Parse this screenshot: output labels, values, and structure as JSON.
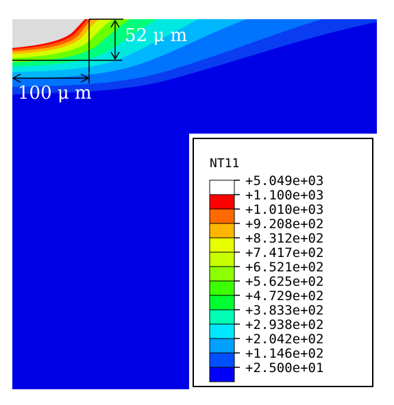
{
  "legend": {
    "title": "NT11",
    "values": [
      "+5.049e+03",
      "+1.100e+03",
      "+1.010e+03",
      "+9.208e+02",
      "+8.312e+02",
      "+7.417e+02",
      "+6.521e+02",
      "+5.625e+02",
      "+4.729e+02",
      "+3.833e+02",
      "+2.938e+02",
      "+2.042e+02",
      "+1.146e+02",
      "+2.500e+01"
    ],
    "colors": [
      "#ffffff",
      "#ff0000",
      "#ff6a00",
      "#ffb600",
      "#e8ff00",
      "#c8ff00",
      "#8cff00",
      "#3cff00",
      "#00ff32",
      "#00ffb4",
      "#00e8ff",
      "#00a0ff",
      "#0050ff",
      "#0000ff"
    ]
  },
  "annotations": {
    "depth": "52 μ m",
    "width": "100 μ m"
  },
  "colors": {
    "background_field": "#0000e6",
    "melt_region": "#dcdcdc",
    "annotation": "#000000"
  }
}
